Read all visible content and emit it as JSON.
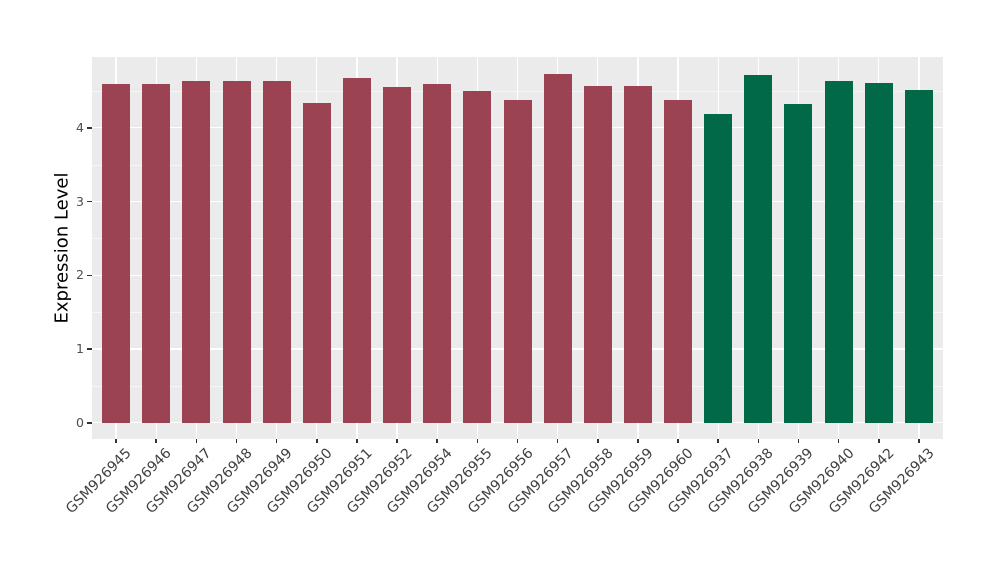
{
  "figure": {
    "background": "#FFFFFF",
    "panel_background": "#EBEBEB",
    "gridline_color": "#FFFFFF",
    "tick_color": "#333333",
    "axis_text_color": "#4D4D4D",
    "axis_title_color": "#000000"
  },
  "chart_data": {
    "type": "bar",
    "title": "",
    "xlabel": "",
    "ylabel": "Expression Level",
    "categories": [
      "GSM926945",
      "GSM926946",
      "GSM926947",
      "GSM926948",
      "GSM926949",
      "GSM926950",
      "GSM926951",
      "GSM926952",
      "GSM926954",
      "GSM926955",
      "GSM926956",
      "GSM926957",
      "GSM926958",
      "GSM926959",
      "GSM926960",
      "GSM926937",
      "GSM926938",
      "GSM926939",
      "GSM926940",
      "GSM926942",
      "GSM926943"
    ],
    "values": [
      4.59,
      4.6,
      4.64,
      4.63,
      4.63,
      4.33,
      4.67,
      4.55,
      4.6,
      4.5,
      4.38,
      4.73,
      4.56,
      4.56,
      4.38,
      4.19,
      4.72,
      4.32,
      4.64,
      4.61,
      4.51
    ],
    "bar_colors": [
      "#9B4353",
      "#9B4353",
      "#9B4353",
      "#9B4353",
      "#9B4353",
      "#9B4353",
      "#9B4353",
      "#9B4353",
      "#9B4353",
      "#9B4353",
      "#9B4353",
      "#9B4353",
      "#9B4353",
      "#9B4353",
      "#9B4353",
      "#016848",
      "#016848",
      "#016848",
      "#016848",
      "#016848",
      "#016848"
    ],
    "group_colors": {
      "left_group": "#9B4353",
      "right_group": "#016848"
    },
    "yticks": [
      0,
      1,
      2,
      3,
      4
    ],
    "yticks_minor": [
      0.5,
      1.5,
      2.5,
      3.5,
      4.5
    ],
    "ylim": [
      -0.22,
      4.96
    ],
    "grid": "major+minor",
    "legend": "none",
    "bar_rel_width": 0.7,
    "x_tick_label_rotation": 45
  }
}
